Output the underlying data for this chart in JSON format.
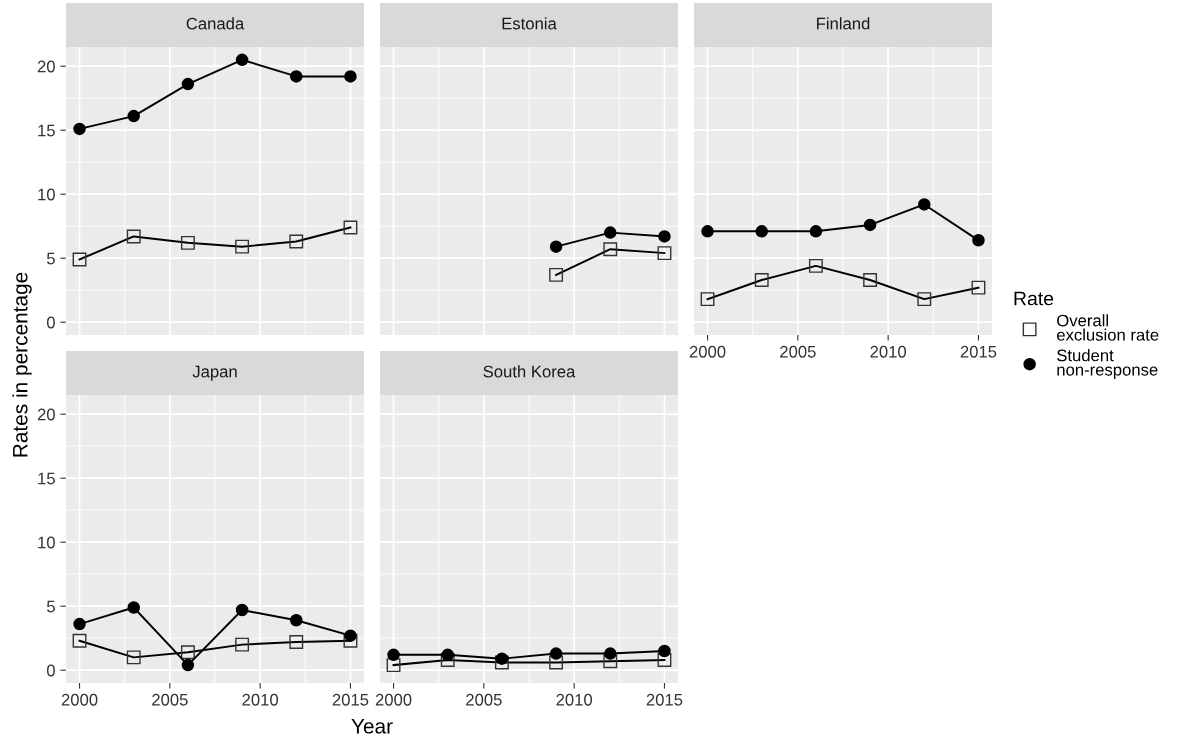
{
  "chart_data": [
    {
      "type": "line",
      "title": "Canada",
      "ylabel": "Rates in percentage",
      "x": [
        2000,
        2003,
        2006,
        2009,
        2012,
        2015
      ],
      "xlim": [
        1999.25,
        2015.75
      ],
      "xticks": [
        2000,
        2005,
        2010,
        2015
      ],
      "ylim": [
        -1.0,
        21.5
      ],
      "yticks": [
        0,
        5,
        10,
        15,
        20
      ],
      "grid": true,
      "tick_labels": "y",
      "series": [
        {
          "marker": "square",
          "color": "#000000",
          "values": [
            4.9,
            6.7,
            6.2,
            5.9,
            6.3,
            7.4
          ]
        },
        {
          "marker": "circle",
          "color": "#000000",
          "values": [
            15.1,
            16.1,
            18.6,
            20.5,
            19.2,
            19.2
          ]
        }
      ]
    },
    {
      "type": "line",
      "title": "Estonia",
      "x": [
        2009,
        2012,
        2015
      ],
      "xlim": [
        1999.25,
        2015.75
      ],
      "xticks": [
        2000,
        2005,
        2010,
        2015
      ],
      "ylim": [
        -1.0,
        21.5
      ],
      "yticks": [
        0,
        5,
        10,
        15,
        20
      ],
      "grid": true,
      "tick_labels": false,
      "series": [
        {
          "marker": "square",
          "color": "#000000",
          "values": [
            3.7,
            5.7,
            5.4
          ]
        },
        {
          "marker": "circle",
          "color": "#000000",
          "values": [
            5.9,
            7.0,
            6.7
          ]
        }
      ]
    },
    {
      "type": "line",
      "title": "Finland",
      "x": [
        2000,
        2003,
        2006,
        2009,
        2012,
        2015
      ],
      "xlim": [
        1999.25,
        2015.75
      ],
      "xticks": [
        2000,
        2005,
        2010,
        2015
      ],
      "ylim": [
        -1.0,
        21.5
      ],
      "yticks": [
        0,
        5,
        10,
        15,
        20
      ],
      "grid": true,
      "tick_labels": "x",
      "legend": "right",
      "legend_title": "Rate",
      "series": [
        {
          "name": "Overall\nexclusion rate",
          "marker": "square",
          "color": "#000000",
          "values": [
            1.8,
            3.3,
            4.4,
            3.3,
            1.8,
            2.7
          ]
        },
        {
          "name": "Student\nnon-response",
          "marker": "circle",
          "color": "#000000",
          "values": [
            7.1,
            7.1,
            7.1,
            7.6,
            9.2,
            6.4
          ]
        }
      ]
    },
    {
      "type": "line",
      "title": "Japan",
      "x": [
        2000,
        2003,
        2006,
        2009,
        2012,
        2015
      ],
      "xlim": [
        1999.25,
        2015.75
      ],
      "xticks": [
        2000,
        2005,
        2010,
        2015
      ],
      "ylim": [
        -1.0,
        21.5
      ],
      "yticks": [
        0,
        5,
        10,
        15,
        20
      ],
      "grid": true,
      "series": [
        {
          "marker": "square",
          "color": "#000000",
          "values": [
            2.3,
            1.0,
            1.4,
            2.0,
            2.2,
            2.3
          ]
        },
        {
          "marker": "circle",
          "color": "#000000",
          "values": [
            3.6,
            4.9,
            0.4,
            4.7,
            3.9,
            2.7
          ]
        }
      ]
    },
    {
      "type": "line",
      "title": "South Korea",
      "xlabel": "Year",
      "x": [
        2000,
        2003,
        2006,
        2009,
        2012,
        2015
      ],
      "xlim": [
        1999.25,
        2015.75
      ],
      "xticks": [
        2000,
        2005,
        2010,
        2015
      ],
      "ylim": [
        -1.0,
        21.5
      ],
      "yticks": [
        0,
        5,
        10,
        15,
        20
      ],
      "grid": true,
      "tick_labels": "x",
      "series": [
        {
          "marker": "square",
          "color": "#000000",
          "values": [
            0.4,
            0.8,
            0.6,
            0.6,
            0.7,
            0.8
          ]
        },
        {
          "marker": "circle",
          "color": "#000000",
          "values": [
            1.2,
            1.2,
            0.9,
            1.3,
            1.3,
            1.5
          ]
        }
      ]
    }
  ]
}
